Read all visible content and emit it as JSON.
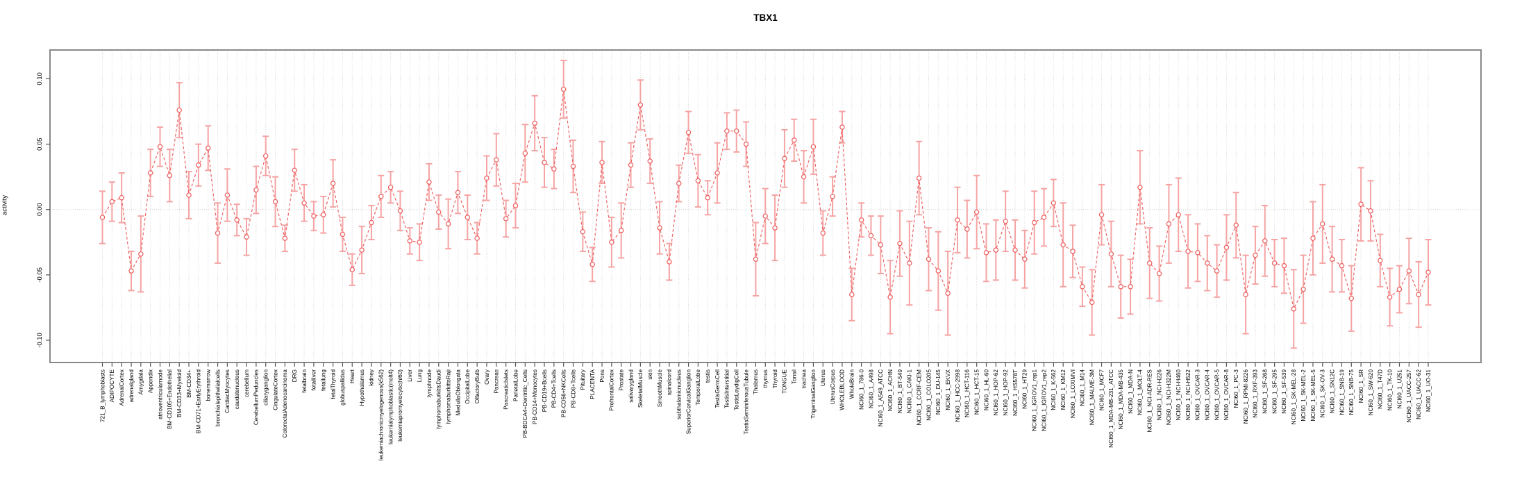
{
  "chart_data": {
    "type": "line",
    "title": "TBX1",
    "xlabel": "",
    "ylabel": "activity",
    "ylim": [
      -0.117,
      0.122
    ],
    "yticks": [
      -0.1,
      -0.05,
      0.0,
      0.05,
      0.1
    ],
    "ytick_labels": [
      "-0.10",
      "-0.05",
      "0.00",
      "0.05",
      "0.10"
    ],
    "grid": "dotted vertical gridline at every category; dotted horizontal line at 0",
    "legend": "none",
    "point_style": "open circles connected by dashed line, vertical error bars with caps",
    "colors": {
      "line": "#ee6363",
      "point": "#ee6363",
      "error_bar": "#f5a3a3",
      "grid": "#d9d9d9",
      "zero_line": "#cfcfcf",
      "box": "#888888",
      "tick": "#555555",
      "text": "#000000"
    },
    "series_name": "activity",
    "categories": [
      "721_B_lymphoblasts",
      "ADIPOCYTE",
      "AdrenalCortex",
      "adrenalgland",
      "Amygdala",
      "Appendix",
      "atrioventricularnode",
      "BM-CD105+Endothelial",
      "BM-CD33+Myeloid",
      "BM-CD34+",
      "BM-CD71+EarlyErythroid",
      "bonemarrow",
      "bronchialepithelialcells",
      "CardiacMyocytes",
      "caudatenucleus",
      "cerebellum",
      "CerebellumPeduncles",
      "ciliaryganglion",
      "CingulateCortex",
      "ColorectalAdenocarcinoma",
      "DRG",
      "fetalbrain",
      "fetalliver",
      "fetallung",
      "fetalThyroid",
      "globuspallidus",
      "Heart",
      "Hypothalamus",
      "kidney",
      "leukemiachronicmyelogenous(k562)",
      "leukemialymphoblastic(molt4)",
      "leukemiapromyelocytic(hl60)",
      "Liver",
      "Lung",
      "lymphnode",
      "lymphomaburkittsDaudi",
      "lymphomaburkittsRaji",
      "MedullaOblongata",
      "OccipitalLobe",
      "OlfactoryBulb",
      "Ovary",
      "Pancreas",
      "PancreaticIslets",
      "ParietalLobe",
      "PB-BDCA4+Dentritic_Cells",
      "PB-CD14+Monocytes",
      "PB-CD19+Bcells",
      "PB-CD4+Tcells",
      "PB-CD56+NKCells",
      "PB-CD8+Tcells",
      "Pituitary",
      "PLACENTA",
      "Pons",
      "PrefrontalCortex",
      "Prostate",
      "salivarygland",
      "SkeletalMuscle",
      "skin",
      "SmoothMuscle",
      "spinalcord",
      "subthalamicnucleus",
      "SuperiorCervicalGanglion",
      "TemporalLobe",
      "testis",
      "TestisGermCell",
      "TestisInterstitial",
      "TestisLeydigCell",
      "TestisSeminiferousTubule",
      "Thalamus",
      "thymus",
      "Thyroid",
      "TONGUE",
      "Tonsil",
      "trachea",
      "TrigeminalGanglion",
      "Uterus",
      "UterusCorpus",
      "WHOLEBLOOD",
      "WholeBrain",
      "NCI60_1_786-0",
      "NCI60_1_A498",
      "NCI60_1_A549_ATCC",
      "NCI60_1_ACHN",
      "NCI60_1_BT-549",
      "NCI60_1_CAKI-1",
      "NCI60_1_CCRF-CEM",
      "NCI60_1_COLO205",
      "NCI60_1_DU-145",
      "NCI60_1_EKVX",
      "NCI60_1_HCC-2998",
      "NCI60_1_HCT-116",
      "NCI60_1_HCT-15",
      "NCI60_1_HL-60",
      "NCI60_1_HOP-62",
      "NCI60_1_HOP-92",
      "NCI60_1_HS578T",
      "NCI60_1_HT29",
      "NCI60_1_IGROV1_rep1",
      "NCI60_1_IGROV1_rep2",
      "NCI60_1_K-562",
      "NCI60_1_KM12",
      "NCI60_1_LOXIMVI",
      "NCI60_1_M14",
      "NCI60_1_MALME-3M",
      "NCI60_1_MCF7",
      "NCI60_1_MDA-MB-231_ATCC",
      "NCI60_1_MDA-MB-435",
      "NCI60_1_MDA-N",
      "NCI60_1_MOLT-4",
      "NCI60_1_NCI-ADR-RES",
      "NCI60_1_NCI-H226",
      "NCI60_1_NCI-H322M",
      "NCI60_1_NCI-H460",
      "NCI60_1_NCI-H522",
      "NCI60_1_OVCAR-3",
      "NCI60_1_OVCAR-4",
      "NCI60_1_OVCAR-5",
      "NCI60_1_OVCAR-8",
      "NCI60_1_PC-3",
      "NCI60_1_RPMI-8226",
      "NCI60_1_RXF-393",
      "NCI60_1_SF-268",
      "NCI60_1_SF-295",
      "NCI60_1_SF-539",
      "NCI60_1_SK-MEL-28",
      "NCI60_1_SK-MEL-2",
      "NCI60_1_SK-MEL-5",
      "NCI60_1_SK-OV-3",
      "NCI60_1_SN12C",
      "NCI60_1_SNB-19",
      "NCI60_1_SNB-75",
      "NCI60_1_SR",
      "NCI60_1_SW-620",
      "NCI60_1_T47D",
      "NCI60_1_TK-10",
      "NCI60_1_U251",
      "NCI60_1_UACC-257",
      "NCI60_1_UACC-62",
      "NCI60_1_UO-31"
    ],
    "values": [
      -0.006,
      0.006,
      0.009,
      -0.047,
      -0.034,
      0.028,
      0.048,
      0.026,
      0.076,
      0.011,
      0.034,
      0.047,
      -0.018,
      0.011,
      -0.008,
      -0.021,
      0.015,
      0.041,
      0.006,
      -0.022,
      0.03,
      0.005,
      -0.005,
      -0.004,
      0.02,
      -0.019,
      -0.046,
      -0.031,
      -0.01,
      0.01,
      0.017,
      -0.001,
      -0.024,
      -0.025,
      0.021,
      -0.002,
      -0.011,
      0.013,
      -0.006,
      -0.022,
      0.024,
      0.038,
      -0.007,
      0.003,
      0.043,
      0.066,
      0.036,
      0.031,
      0.092,
      0.033,
      -0.017,
      -0.042,
      0.036,
      -0.025,
      -0.016,
      0.034,
      0.08,
      0.037,
      -0.014,
      -0.04,
      0.02,
      0.059,
      0.022,
      0.009,
      0.028,
      0.06,
      0.06,
      0.05,
      -0.038,
      -0.005,
      -0.014,
      0.039,
      0.053,
      0.025,
      0.048,
      -0.018,
      0.01,
      0.063,
      -0.065,
      -0.008,
      -0.02,
      -0.027,
      -0.067,
      -0.026,
      -0.041,
      0.024,
      -0.038,
      -0.047,
      -0.064,
      -0.008,
      -0.015,
      -0.002,
      -0.033,
      -0.031,
      -0.009,
      -0.031,
      -0.038,
      -0.01,
      -0.006,
      0.005,
      -0.027,
      -0.032,
      -0.059,
      -0.071,
      -0.004,
      -0.034,
      -0.059,
      -0.059,
      0.017,
      -0.041,
      -0.049,
      -0.011,
      -0.004,
      -0.032,
      -0.033,
      -0.041,
      -0.047,
      -0.029,
      -0.012,
      -0.065,
      -0.035,
      -0.024,
      -0.041,
      -0.043,
      -0.076,
      -0.061,
      -0.022,
      -0.011,
      -0.038,
      -0.043,
      -0.068,
      0.004,
      -0.001,
      -0.039,
      -0.067,
      -0.061,
      -0.047,
      -0.065,
      -0.048
    ],
    "error_halfwidths": [
      0.02,
      0.015,
      0.019,
      0.015,
      0.029,
      0.018,
      0.015,
      0.02,
      0.021,
      0.018,
      0.016,
      0.017,
      0.023,
      0.02,
      0.012,
      0.014,
      0.018,
      0.015,
      0.019,
      0.01,
      0.016,
      0.014,
      0.011,
      0.014,
      0.018,
      0.013,
      0.012,
      0.018,
      0.013,
      0.016,
      0.012,
      0.015,
      0.01,
      0.014,
      0.014,
      0.013,
      0.019,
      0.016,
      0.017,
      0.012,
      0.017,
      0.02,
      0.014,
      0.017,
      0.022,
      0.021,
      0.019,
      0.015,
      0.022,
      0.02,
      0.015,
      0.013,
      0.016,
      0.019,
      0.021,
      0.017,
      0.019,
      0.017,
      0.02,
      0.014,
      0.014,
      0.016,
      0.02,
      0.013,
      0.023,
      0.014,
      0.016,
      0.017,
      0.028,
      0.021,
      0.025,
      0.022,
      0.016,
      0.02,
      0.021,
      0.017,
      0.015,
      0.012,
      0.02,
      0.013,
      0.015,
      0.022,
      0.028,
      0.025,
      0.032,
      0.028,
      0.024,
      0.03,
      0.032,
      0.025,
      0.022,
      0.028,
      0.022,
      0.023,
      0.023,
      0.023,
      0.022,
      0.024,
      0.022,
      0.018,
      0.032,
      0.02,
      0.015,
      0.025,
      0.023,
      0.025,
      0.024,
      0.021,
      0.028,
      0.027,
      0.021,
      0.03,
      0.028,
      0.028,
      0.022,
      0.021,
      0.02,
      0.025,
      0.025,
      0.03,
      0.022,
      0.027,
      0.018,
      0.021,
      0.03,
      0.026,
      0.028,
      0.03,
      0.025,
      0.02,
      0.025,
      0.028,
      0.023,
      0.02,
      0.022,
      0.018,
      0.025,
      0.025,
      0.025
    ]
  }
}
